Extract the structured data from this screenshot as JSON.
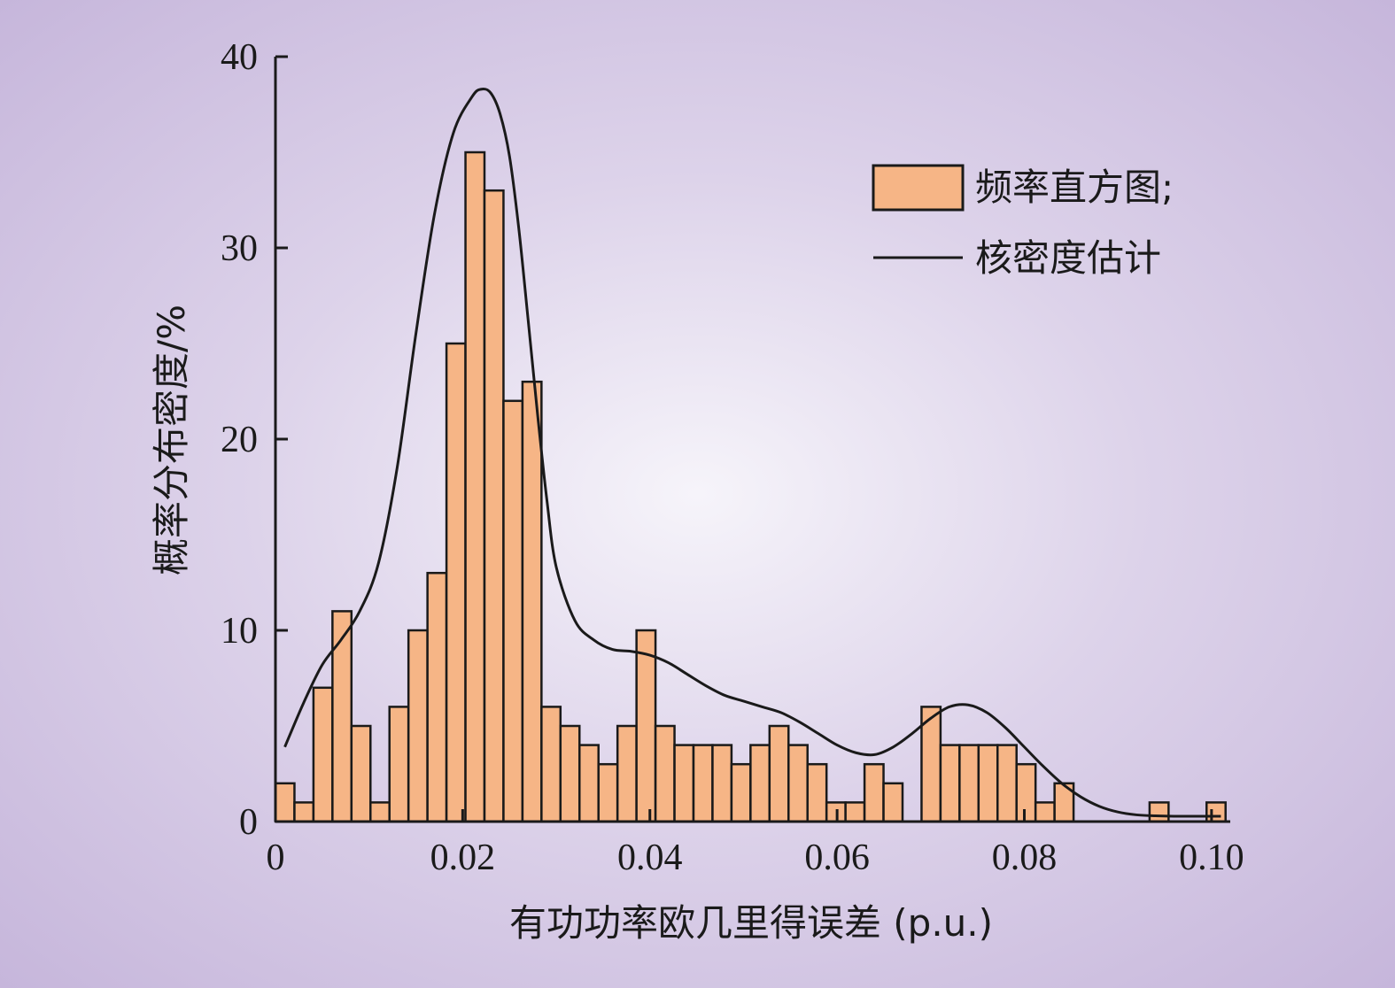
{
  "chart_data": {
    "type": "bar",
    "title": "",
    "xlabel": "有功功率欧几里得误差 (p.u.)",
    "ylabel": "概率分布密度/%",
    "xlim": [
      0,
      0.102
    ],
    "ylim": [
      0,
      40
    ],
    "x_ticks": [
      "0",
      "0.02",
      "0.04",
      "0.06",
      "0.08",
      "0.10"
    ],
    "x_tick_values": [
      0,
      0.02,
      0.04,
      0.06,
      0.08,
      0.1
    ],
    "y_ticks": [
      "0",
      "10",
      "20",
      "30",
      "40"
    ],
    "y_tick_values": [
      0,
      10,
      20,
      30,
      40
    ],
    "bin_width": 0.00203,
    "bins_start": [
      0,
      0.00203,
      0.00406,
      0.00609,
      0.00812,
      0.01015,
      0.01218,
      0.01421,
      0.01624,
      0.01827,
      0.0203,
      0.02233,
      0.02436,
      0.02639,
      0.02842,
      0.03045,
      0.03248,
      0.03451,
      0.03654,
      0.03857,
      0.0406,
      0.04263,
      0.04466,
      0.04669,
      0.04872,
      0.05075,
      0.05278,
      0.05481,
      0.05684,
      0.05887,
      0.0609,
      0.06293,
      0.06496,
      0.06699,
      0.06902,
      0.07105,
      0.07308,
      0.07511,
      0.07714,
      0.07917,
      0.0812,
      0.08323,
      0.08526,
      0.08729,
      0.08932,
      0.09135,
      0.09338,
      0.09541,
      0.09744,
      0.09947
    ],
    "histogram_values": [
      2,
      1,
      7,
      11,
      5,
      1,
      6,
      10,
      13,
      25,
      35,
      33,
      22,
      23,
      6,
      5,
      4,
      3,
      5,
      10,
      5,
      4,
      4,
      4,
      3,
      4,
      5,
      4,
      3,
      1,
      1,
      3,
      2,
      0,
      6,
      4,
      4,
      4,
      4,
      3,
      1,
      2,
      0,
      0,
      0,
      0,
      1,
      0,
      0,
      1
    ],
    "kde_curve": {
      "x": [
        0.001,
        0.003,
        0.005,
        0.007,
        0.009,
        0.011,
        0.013,
        0.015,
        0.017,
        0.019,
        0.021,
        0.022,
        0.023,
        0.024,
        0.025,
        0.026,
        0.027,
        0.028,
        0.029,
        0.03,
        0.032,
        0.034,
        0.036,
        0.038,
        0.04,
        0.042,
        0.044,
        0.046,
        0.048,
        0.05,
        0.052,
        0.054,
        0.056,
        0.058,
        0.06,
        0.062,
        0.064,
        0.066,
        0.068,
        0.07,
        0.072,
        0.074,
        0.076,
        0.078,
        0.08,
        0.082,
        0.084,
        0.086,
        0.088,
        0.09,
        0.092,
        0.094,
        0.096,
        0.098,
        0.1,
        0.101
      ],
      "y": [
        3.9,
        6.2,
        8.2,
        9.5,
        11.0,
        13.5,
        18.5,
        25.5,
        31.8,
        36.0,
        37.9,
        38.3,
        38.1,
        37.0,
        34.8,
        31.0,
        26.2,
        21.3,
        16.8,
        13.3,
        10.5,
        9.5,
        9.0,
        8.9,
        8.7,
        8.3,
        7.7,
        7.1,
        6.6,
        6.3,
        6.0,
        5.7,
        5.2,
        4.6,
        4.0,
        3.6,
        3.5,
        3.9,
        4.6,
        5.4,
        6.0,
        6.1,
        5.7,
        4.9,
        3.9,
        2.9,
        2.0,
        1.3,
        0.8,
        0.5,
        0.35,
        0.3,
        0.28,
        0.28,
        0.28,
        0.28
      ]
    },
    "legend": {
      "position": "top-right",
      "entries": [
        "频率直方图;",
        "核密度估计"
      ]
    },
    "colors": {
      "bar_fill": "#f6b586",
      "bar_stroke": "#1a1a1a",
      "curve": "#1a1a1a",
      "axis": "#1a1a1a"
    },
    "grid": false
  }
}
